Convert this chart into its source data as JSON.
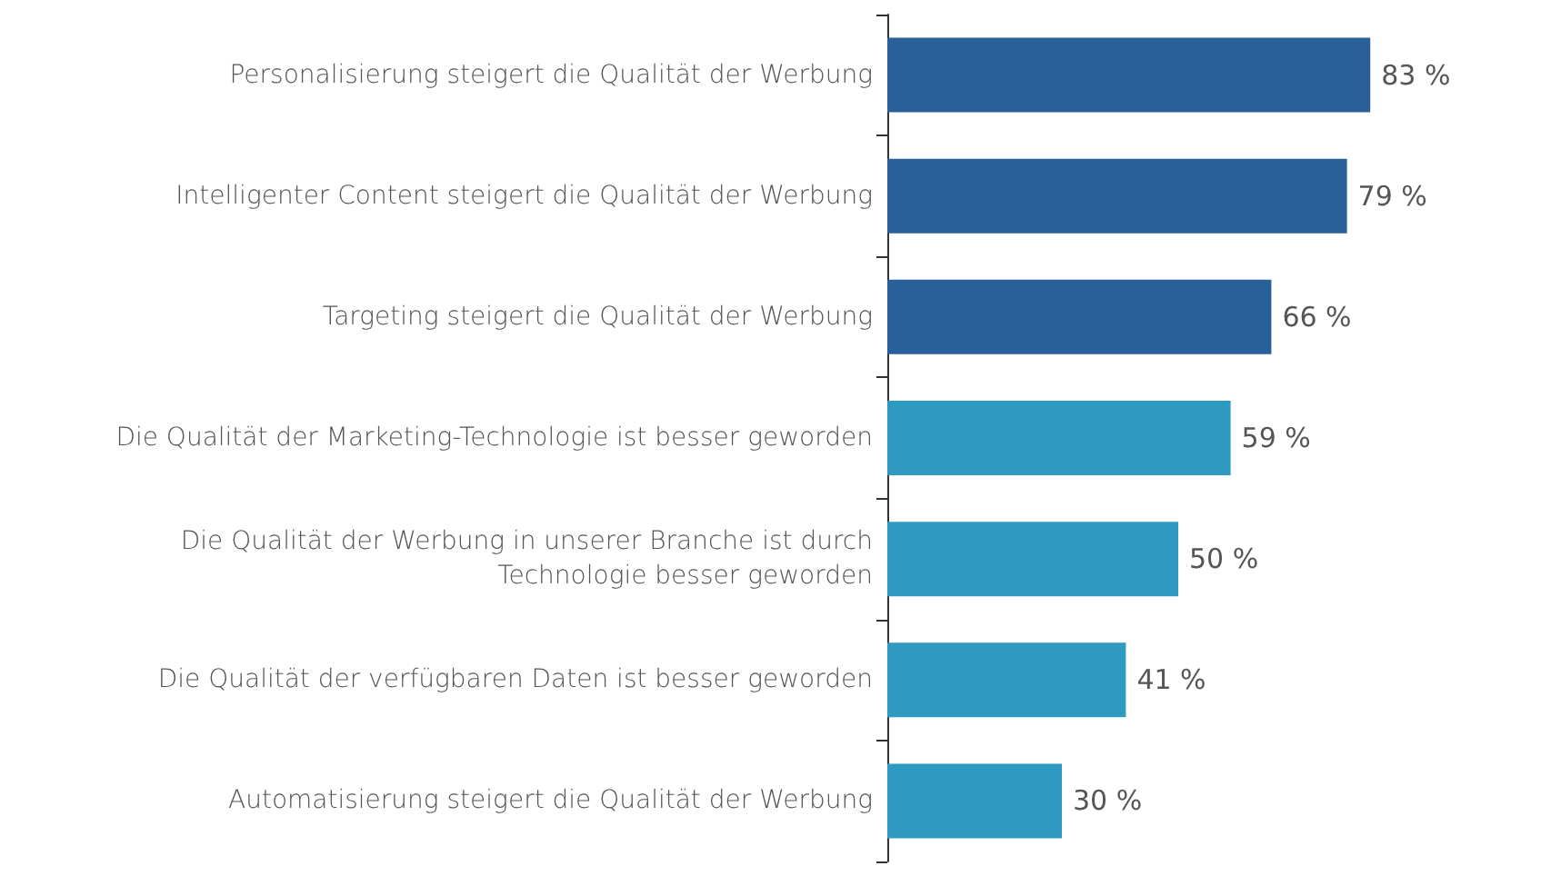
{
  "chart_data": {
    "type": "bar",
    "orientation": "horizontal",
    "categories": [
      "Personalisierung steigert die Qualität der Werbung",
      "Intelligenter Content steigert die Qualität der Werbung",
      "Targeting steigert die Qualität der Werbung",
      "Die Qualität der Marketing-Technologie ist besser geworden",
      "Die Qualität der Werbung in unserer Branche ist durch\nTechnologie besser geworden",
      "Die Qualität der verfügbaren Daten ist besser geworden",
      "Automatisierung steigert die Qualität der Werbung"
    ],
    "values": [
      83,
      79,
      66,
      59,
      50,
      41,
      30
    ],
    "colors": [
      "#2a6099",
      "#2a6099",
      "#2a6099",
      "#2f9ac1",
      "#2f9ac1",
      "#2f9ac1",
      "#2f9ac1"
    ],
    "value_labels": [
      "83 %",
      "79 %",
      "66 %",
      "59 %",
      "50 %",
      "41 %",
      "30 %"
    ]
  }
}
